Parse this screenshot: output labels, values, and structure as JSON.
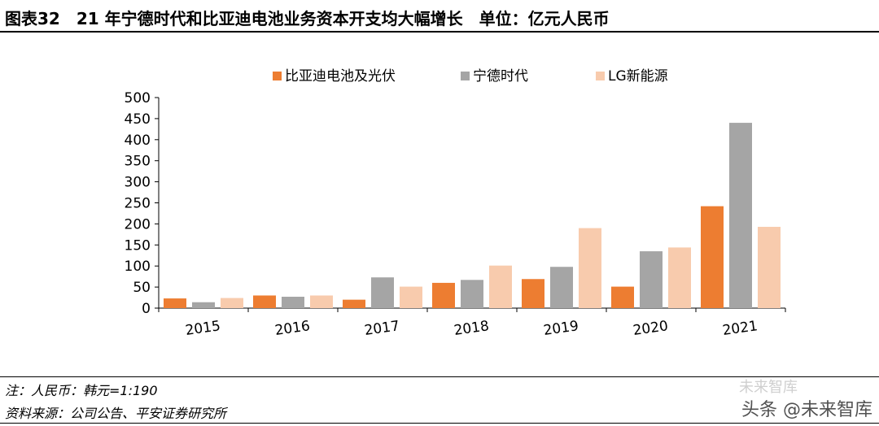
{
  "header": {
    "title": "图表32　21 年宁德时代和比亚迪电池业务资本开支均大幅增长　单位：亿元人民币"
  },
  "chart_data": {
    "type": "bar",
    "categories": [
      "2015",
      "2016",
      "2017",
      "2018",
      "2019",
      "2020",
      "2021"
    ],
    "series": [
      {
        "name": "比亚迪电池及光伏",
        "color": "#ED7D31",
        "values": [
          23,
          30,
          20,
          60,
          69,
          51,
          242
        ]
      },
      {
        "name": "宁德时代",
        "color": "#A5A5A5",
        "values": [
          14,
          27,
          73,
          67,
          98,
          135,
          440
        ]
      },
      {
        "name": "LG新能源",
        "color": "#F8CBAD",
        "values": [
          24,
          30,
          51,
          101,
          190,
          144,
          193
        ]
      }
    ],
    "ylim": [
      0,
      500
    ],
    "yticks": [
      0,
      50,
      100,
      150,
      200,
      250,
      300,
      350,
      400,
      450,
      500
    ],
    "xlabel": "",
    "ylabel": "",
    "legend_position": "top",
    "grid": false
  },
  "footer": {
    "note": "注：人民币：韩元=1:190",
    "source": "资料来源：公司公告、平安证券研究所"
  },
  "watermark": {
    "faint_text": "未来智库",
    "text": "头条 @未来智库"
  }
}
